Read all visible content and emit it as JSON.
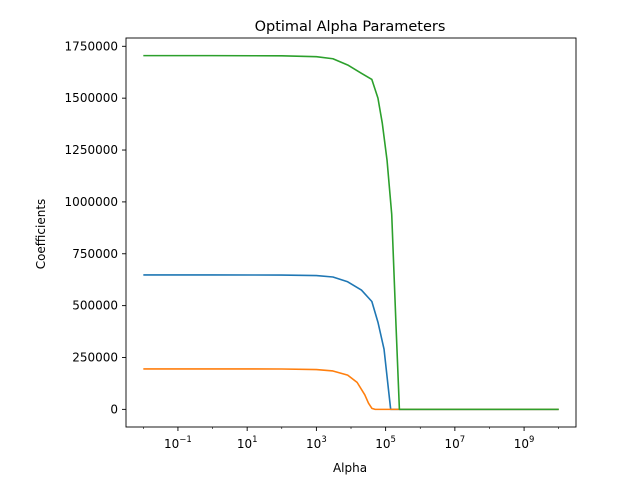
{
  "chart_data": {
    "type": "line",
    "title": "Optimal Alpha Parameters",
    "xlabel": "Alpha",
    "ylabel": "Coefficients",
    "xscale": "log",
    "xlim": [
      0.00316,
      31600000000
    ],
    "ylim": [
      -85000,
      1790000
    ],
    "xticks": [
      {
        "value": 0.1,
        "base": "10",
        "exp": "−1"
      },
      {
        "value": 10,
        "base": "10",
        "exp": "1"
      },
      {
        "value": 1000,
        "base": "10",
        "exp": "3"
      },
      {
        "value": 100000,
        "base": "10",
        "exp": "5"
      },
      {
        "value": 10000000,
        "base": "10",
        "exp": "7"
      },
      {
        "value": 1000000000,
        "base": "10",
        "exp": "9"
      }
    ],
    "yticks": [
      {
        "value": 0,
        "label": "0"
      },
      {
        "value": 250000,
        "label": "250000"
      },
      {
        "value": 500000,
        "label": "500000"
      },
      {
        "value": 750000,
        "label": "750000"
      },
      {
        "value": 1000000,
        "label": "1000000"
      },
      {
        "value": 1250000,
        "label": "1250000"
      },
      {
        "value": 1500000,
        "label": "1500000"
      },
      {
        "value": 1750000,
        "label": "1750000"
      }
    ],
    "grid": false,
    "legend": "none",
    "series": [
      {
        "color": "#1f77b4",
        "points": [
          [
            0.01,
            648000
          ],
          [
            1,
            648000
          ],
          [
            100,
            647500
          ],
          [
            1000,
            645000
          ],
          [
            3000,
            638000
          ],
          [
            8000,
            615000
          ],
          [
            20000,
            575000
          ],
          [
            40000,
            520000
          ],
          [
            60000,
            420000
          ],
          [
            90000,
            290000
          ],
          [
            120000,
            100000
          ],
          [
            140000,
            0
          ],
          [
            10000000000,
            0
          ]
        ]
      },
      {
        "color": "#ff7f0e",
        "points": [
          [
            0.01,
            195000
          ],
          [
            1,
            195000
          ],
          [
            100,
            194500
          ],
          [
            1000,
            192000
          ],
          [
            3000,
            185000
          ],
          [
            8000,
            165000
          ],
          [
            15000,
            130000
          ],
          [
            25000,
            70000
          ],
          [
            32000,
            30000
          ],
          [
            40000,
            5000
          ],
          [
            50000,
            0
          ],
          [
            10000000000,
            0
          ]
        ]
      },
      {
        "color": "#2ca02c",
        "points": [
          [
            0.01,
            1705000
          ],
          [
            1,
            1705000
          ],
          [
            100,
            1704000
          ],
          [
            1000,
            1700000
          ],
          [
            3000,
            1690000
          ],
          [
            8000,
            1660000
          ],
          [
            20000,
            1620000
          ],
          [
            40000,
            1590000
          ],
          [
            60000,
            1500000
          ],
          [
            80000,
            1380000
          ],
          [
            110000,
            1200000
          ],
          [
            150000,
            940000
          ],
          [
            200000,
            400000
          ],
          [
            250000,
            0
          ],
          [
            10000000000,
            0
          ]
        ]
      }
    ]
  }
}
